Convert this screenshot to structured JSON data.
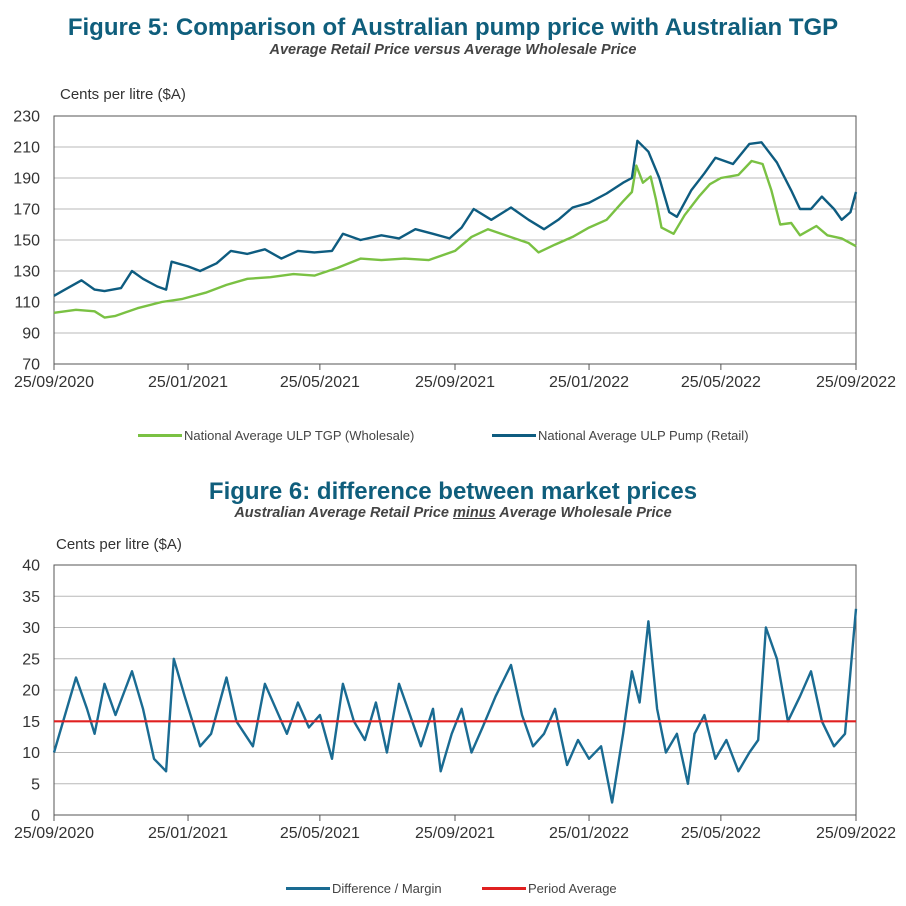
{
  "figure5": {
    "title": "Figure 5: Comparison of Australian pump price with Australian TGP",
    "subtitle": "Average Retail Price versus Average Wholesale Price",
    "ylabel": "Cents per litre ($A)",
    "legend": {
      "wholesale": "National Average ULP TGP (Wholesale)",
      "retail": "National Average ULP Pump (Retail)"
    }
  },
  "figure6": {
    "title": "Figure 6:  difference between market prices",
    "subtitle_before": "Australian Average Retail Price ",
    "subtitle_underlined": "minus",
    "subtitle_after": " Average Wholesale Price",
    "ylabel": "Cents per litre ($A)",
    "legend": {
      "margin": "Difference / Margin",
      "average": "Period Average"
    }
  },
  "colors": {
    "title": "#0f5e7c",
    "wholesale": "#7ac143",
    "retail": "#0e5c80",
    "margin": "#1a6b92",
    "average": "#e02020",
    "grid": "#b8b8b8",
    "axis": "#555555"
  },
  "chart_data": [
    {
      "type": "line",
      "title": "Figure 5: Comparison of Australian pump price with Australian TGP",
      "subtitle": "Average Retail Price versus Average Wholesale Price",
      "ylabel": "Cents per litre ($A)",
      "xlabel": "",
      "ylim": [
        70,
        230
      ],
      "yticks": [
        70,
        90,
        110,
        130,
        150,
        170,
        190,
        210,
        230
      ],
      "xlim": [
        "2020-09-25",
        "2022-09-25"
      ],
      "xticks": [
        "25/09/2020",
        "25/01/2021",
        "25/05/2021",
        "25/09/2021",
        "25/01/2022",
        "25/05/2022",
        "25/09/2022"
      ],
      "grid": true,
      "legend_position": "bottom",
      "series": [
        {
          "name": "National Average ULP TGP (Wholesale)",
          "color": "#7ac143",
          "points": [
            [
              "2020-09-25",
              103
            ],
            [
              "2020-10-15",
              105
            ],
            [
              "2020-11-01",
              104
            ],
            [
              "2020-11-10",
              100
            ],
            [
              "2020-11-20",
              101
            ],
            [
              "2020-12-10",
              106
            ],
            [
              "2021-01-01",
              110
            ],
            [
              "2021-01-20",
              112
            ],
            [
              "2021-02-10",
              116
            ],
            [
              "2021-03-01",
              121
            ],
            [
              "2021-03-20",
              125
            ],
            [
              "2021-04-10",
              126
            ],
            [
              "2021-05-01",
              128
            ],
            [
              "2021-05-20",
              127
            ],
            [
              "2021-06-10",
              132
            ],
            [
              "2021-07-01",
              138
            ],
            [
              "2021-07-20",
              137
            ],
            [
              "2021-08-10",
              138
            ],
            [
              "2021-09-01",
              137
            ],
            [
              "2021-09-25",
              143
            ],
            [
              "2021-10-10",
              152
            ],
            [
              "2021-10-25",
              157
            ],
            [
              "2021-11-10",
              153
            ],
            [
              "2021-12-01",
              148
            ],
            [
              "2021-12-10",
              142
            ],
            [
              "2021-12-25",
              147
            ],
            [
              "2022-01-10",
              152
            ],
            [
              "2022-01-25",
              158
            ],
            [
              "2022-02-10",
              163
            ],
            [
              "2022-02-25",
              175
            ],
            [
              "2022-03-05",
              181
            ],
            [
              "2022-03-09",
              198
            ],
            [
              "2022-03-15",
              187
            ],
            [
              "2022-03-22",
              191
            ],
            [
              "2022-03-27",
              176
            ],
            [
              "2022-04-01",
              158
            ],
            [
              "2022-04-12",
              154
            ],
            [
              "2022-04-22",
              166
            ],
            [
              "2022-05-05",
              178
            ],
            [
              "2022-05-15",
              186
            ],
            [
              "2022-05-25",
              190
            ],
            [
              "2022-06-10",
              192
            ],
            [
              "2022-06-22",
              201
            ],
            [
              "2022-07-02",
              199
            ],
            [
              "2022-07-10",
              182
            ],
            [
              "2022-07-18",
              160
            ],
            [
              "2022-07-28",
              161
            ],
            [
              "2022-08-05",
              153
            ],
            [
              "2022-08-20",
              159
            ],
            [
              "2022-08-30",
              153
            ],
            [
              "2022-09-12",
              151
            ],
            [
              "2022-09-25",
              146
            ]
          ]
        },
        {
          "name": "National Average ULP Pump (Retail)",
          "color": "#0e5c80",
          "points": [
            [
              "2020-09-25",
              114
            ],
            [
              "2020-10-05",
              118
            ],
            [
              "2020-10-20",
              124
            ],
            [
              "2020-11-01",
              118
            ],
            [
              "2020-11-10",
              117
            ],
            [
              "2020-11-25",
              119
            ],
            [
              "2020-12-05",
              130
            ],
            [
              "2020-12-15",
              125
            ],
            [
              "2020-12-28",
              120
            ],
            [
              "2021-01-05",
              118
            ],
            [
              "2021-01-10",
              136
            ],
            [
              "2021-01-25",
              133
            ],
            [
              "2021-02-05",
              130
            ],
            [
              "2021-02-20",
              135
            ],
            [
              "2021-03-05",
              143
            ],
            [
              "2021-03-20",
              141
            ],
            [
              "2021-04-05",
              144
            ],
            [
              "2021-04-20",
              138
            ],
            [
              "2021-05-05",
              143
            ],
            [
              "2021-05-20",
              142
            ],
            [
              "2021-06-05",
              143
            ],
            [
              "2021-06-15",
              154
            ],
            [
              "2021-07-01",
              150
            ],
            [
              "2021-07-20",
              153
            ],
            [
              "2021-08-05",
              151
            ],
            [
              "2021-08-20",
              157
            ],
            [
              "2021-09-05",
              154
            ],
            [
              "2021-09-20",
              151
            ],
            [
              "2021-10-01",
              158
            ],
            [
              "2021-10-12",
              170
            ],
            [
              "2021-10-28",
              163
            ],
            [
              "2021-11-15",
              171
            ],
            [
              "2021-12-01",
              163
            ],
            [
              "2021-12-15",
              157
            ],
            [
              "2021-12-28",
              163
            ],
            [
              "2022-01-10",
              171
            ],
            [
              "2022-01-25",
              174
            ],
            [
              "2022-02-10",
              180
            ],
            [
              "2022-02-25",
              187
            ],
            [
              "2022-03-05",
              190
            ],
            [
              "2022-03-10",
              214
            ],
            [
              "2022-03-20",
              207
            ],
            [
              "2022-03-30",
              190
            ],
            [
              "2022-04-08",
              168
            ],
            [
              "2022-04-15",
              165
            ],
            [
              "2022-04-28",
              182
            ],
            [
              "2022-05-10",
              193
            ],
            [
              "2022-05-20",
              203
            ],
            [
              "2022-06-05",
              199
            ],
            [
              "2022-06-20",
              212
            ],
            [
              "2022-07-01",
              213
            ],
            [
              "2022-07-15",
              200
            ],
            [
              "2022-07-28",
              182
            ],
            [
              "2022-08-05",
              170
            ],
            [
              "2022-08-15",
              170
            ],
            [
              "2022-08-25",
              178
            ],
            [
              "2022-09-05",
              170
            ],
            [
              "2022-09-12",
              163
            ],
            [
              "2022-09-20",
              168
            ],
            [
              "2022-09-25",
              181
            ]
          ]
        }
      ]
    },
    {
      "type": "line",
      "title": "Figure 6:  difference between market prices",
      "subtitle": "Australian Average Retail Price minus Average Wholesale Price",
      "ylabel": "Cents per litre ($A)",
      "xlabel": "",
      "ylim": [
        0,
        40
      ],
      "yticks": [
        0,
        5,
        10,
        15,
        20,
        25,
        30,
        35,
        40
      ],
      "xlim": [
        "2020-09-25",
        "2022-09-25"
      ],
      "xticks": [
        "25/09/2020",
        "25/01/2021",
        "25/05/2021",
        "25/09/2021",
        "25/01/2022",
        "25/05/2022",
        "25/09/2022"
      ],
      "grid": true,
      "legend_position": "bottom",
      "series": [
        {
          "name": "Difference / Margin",
          "color": "#1a6b92",
          "points": [
            [
              "2020-09-25",
              10
            ],
            [
              "2020-10-05",
              16
            ],
            [
              "2020-10-15",
              22
            ],
            [
              "2020-10-25",
              17
            ],
            [
              "2020-11-01",
              13
            ],
            [
              "2020-11-10",
              21
            ],
            [
              "2020-11-20",
              16
            ],
            [
              "2020-12-05",
              23
            ],
            [
              "2020-12-15",
              17
            ],
            [
              "2020-12-25",
              9
            ],
            [
              "2021-01-05",
              7
            ],
            [
              "2021-01-12",
              25
            ],
            [
              "2021-01-22",
              19
            ],
            [
              "2021-02-05",
              11
            ],
            [
              "2021-02-15",
              13
            ],
            [
              "2021-03-01",
              22
            ],
            [
              "2021-03-10",
              15
            ],
            [
              "2021-03-25",
              11
            ],
            [
              "2021-04-05",
              21
            ],
            [
              "2021-04-15",
              17
            ],
            [
              "2021-04-25",
              13
            ],
            [
              "2021-05-05",
              18
            ],
            [
              "2021-05-15",
              14
            ],
            [
              "2021-05-25",
              16
            ],
            [
              "2021-06-05",
              9
            ],
            [
              "2021-06-15",
              21
            ],
            [
              "2021-06-25",
              15
            ],
            [
              "2021-07-05",
              12
            ],
            [
              "2021-07-15",
              18
            ],
            [
              "2021-07-25",
              10
            ],
            [
              "2021-08-05",
              21
            ],
            [
              "2021-08-15",
              16
            ],
            [
              "2021-08-25",
              11
            ],
            [
              "2021-09-05",
              17
            ],
            [
              "2021-09-12",
              7
            ],
            [
              "2021-09-22",
              13
            ],
            [
              "2021-10-01",
              17
            ],
            [
              "2021-10-10",
              10
            ],
            [
              "2021-10-20",
              14
            ],
            [
              "2021-11-01",
              19
            ],
            [
              "2021-11-15",
              24
            ],
            [
              "2021-11-25",
              16
            ],
            [
              "2021-12-05",
              11
            ],
            [
              "2021-12-15",
              13
            ],
            [
              "2021-12-25",
              17
            ],
            [
              "2022-01-05",
              8
            ],
            [
              "2022-01-15",
              12
            ],
            [
              "2022-01-25",
              9
            ],
            [
              "2022-02-05",
              11
            ],
            [
              "2022-02-15",
              2
            ],
            [
              "2022-02-25",
              13
            ],
            [
              "2022-03-05",
              23
            ],
            [
              "2022-03-12",
              18
            ],
            [
              "2022-03-20",
              31
            ],
            [
              "2022-03-28",
              17
            ],
            [
              "2022-04-05",
              10
            ],
            [
              "2022-04-15",
              13
            ],
            [
              "2022-04-25",
              5
            ],
            [
              "2022-05-01",
              13
            ],
            [
              "2022-05-10",
              16
            ],
            [
              "2022-05-20",
              9
            ],
            [
              "2022-05-30",
              12
            ],
            [
              "2022-06-10",
              7
            ],
            [
              "2022-06-20",
              10
            ],
            [
              "2022-06-28",
              12
            ],
            [
              "2022-07-05",
              30
            ],
            [
              "2022-07-15",
              25
            ],
            [
              "2022-07-25",
              15
            ],
            [
              "2022-08-05",
              19
            ],
            [
              "2022-08-15",
              23
            ],
            [
              "2022-08-25",
              15
            ],
            [
              "2022-09-05",
              11
            ],
            [
              "2022-09-15",
              13
            ],
            [
              "2022-09-25",
              33
            ]
          ]
        },
        {
          "name": "Period Average",
          "color": "#e02020",
          "points": [
            [
              "2020-09-25",
              15
            ],
            [
              "2022-09-25",
              15
            ]
          ]
        }
      ]
    }
  ]
}
